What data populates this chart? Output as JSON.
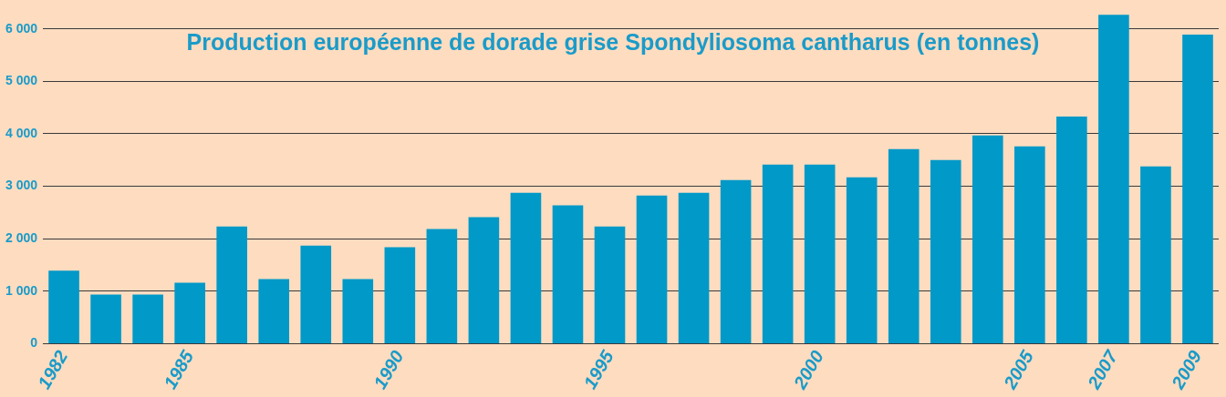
{
  "chart_data": {
    "type": "bar",
    "title": "Production européenne de dorade grise Spondyliosoma cantharus (en tonnes)",
    "categories": [
      "1982",
      null,
      null,
      "1985",
      null,
      null,
      null,
      null,
      "1990",
      null,
      null,
      null,
      null,
      "1995",
      null,
      null,
      null,
      null,
      "2000",
      null,
      null,
      null,
      null,
      "2005",
      null,
      "2007",
      null,
      "2009"
    ],
    "values": [
      1390,
      935,
      935,
      1160,
      2235,
      1230,
      1870,
      1230,
      1840,
      2185,
      2410,
      2875,
      2635,
      2235,
      2825,
      2875,
      3120,
      3415,
      3415,
      3170,
      3710,
      3500,
      3970,
      3760,
      4330,
      6270,
      3380,
      5890
    ],
    "color": "#0099c8",
    "ylim": [
      0,
      6300
    ],
    "yticks": [
      {
        "value": 0,
        "label": "0"
      },
      {
        "value": 1000,
        "label": "1 000"
      },
      {
        "value": 2000,
        "label": "2 000"
      },
      {
        "value": 3000,
        "label": "3 000"
      },
      {
        "value": 4000,
        "label": "4 000"
      },
      {
        "value": 5000,
        "label": "5 000"
      },
      {
        "value": 6000,
        "label": "6 000"
      }
    ],
    "grid": "y"
  }
}
